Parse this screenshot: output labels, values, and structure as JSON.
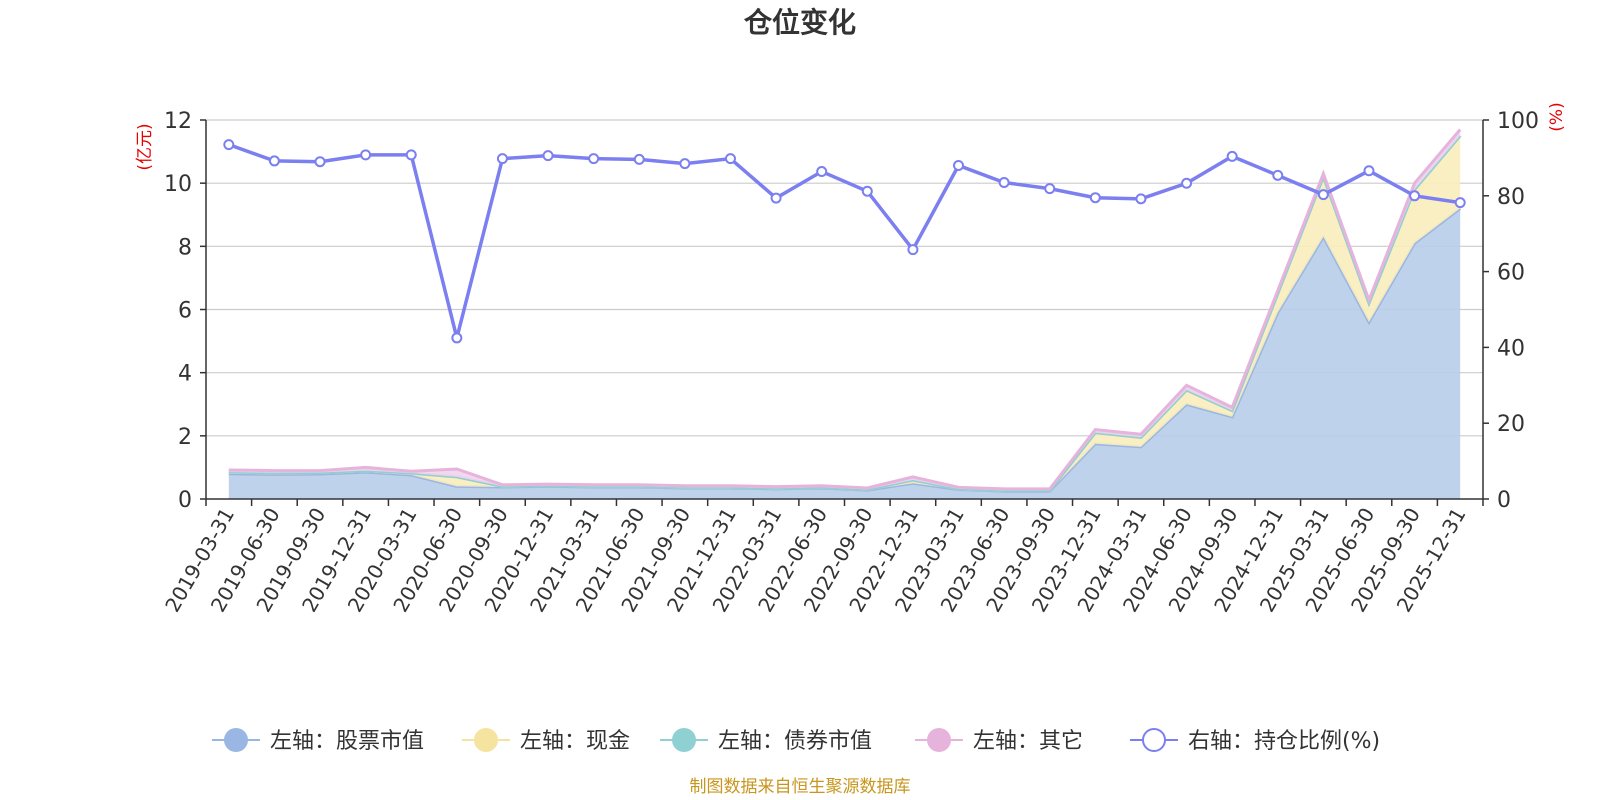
{
  "chart_data": {
    "type": "area",
    "title": "仓位变化",
    "left_axis": {
      "label": "(亿元)",
      "ylim": [
        0,
        12
      ],
      "ticks": [
        0,
        2,
        4,
        6,
        8,
        10,
        12
      ]
    },
    "right_axis": {
      "label": "(%)",
      "ylim": [
        0,
        100
      ],
      "ticks": [
        0,
        20,
        40,
        60,
        80,
        100
      ]
    },
    "categories": [
      "2019-03-31",
      "2019-06-30",
      "2019-09-30",
      "2019-12-31",
      "2020-03-31",
      "2020-06-30",
      "2020-09-30",
      "2020-12-31",
      "2021-03-31",
      "2021-06-30",
      "2021-09-30",
      "2021-12-31",
      "2022-03-31",
      "2022-06-30",
      "2022-09-30",
      "2022-12-31",
      "2023-03-31",
      "2023-06-30",
      "2023-09-30",
      "2023-12-31",
      "2024-03-31",
      "2024-06-30",
      "2024-09-30",
      "2024-12-31",
      "2025-03-31",
      "2025-06-30",
      "2025-09-30",
      "2025-12-31"
    ],
    "series": [
      {
        "name": "左轴：股票市值",
        "axis": "left",
        "type": "area",
        "color": "#9ab6e2",
        "fill": "#b7cdea",
        "values": [
          0.8,
          0.78,
          0.79,
          0.85,
          0.76,
          0.4,
          0.38,
          0.4,
          0.38,
          0.38,
          0.35,
          0.35,
          0.32,
          0.35,
          0.28,
          0.5,
          0.3,
          0.25,
          0.25,
          1.75,
          1.65,
          3.0,
          2.6,
          5.9,
          8.3,
          5.6,
          8.1,
          9.2
        ]
      },
      {
        "name": "左轴：现金",
        "axis": "left",
        "type": "area",
        "color": "#f5e3a0",
        "fill": "#faedbb",
        "values": [
          0.05,
          0.05,
          0.05,
          0.05,
          0.06,
          0.3,
          0.02,
          0.02,
          0.02,
          0.02,
          0.02,
          0.02,
          0.02,
          0.02,
          0.02,
          0.1,
          0.02,
          0.02,
          0.02,
          0.35,
          0.3,
          0.45,
          0.2,
          0.6,
          1.9,
          0.6,
          1.7,
          2.3
        ]
      },
      {
        "name": "左轴：债券市值",
        "axis": "left",
        "type": "area",
        "color": "#8fd0d2",
        "fill": "#bde3e4",
        "values": [
          0,
          0,
          0,
          0,
          0,
          0,
          0,
          0,
          0,
          0,
          0,
          0,
          0,
          0,
          0,
          0,
          0,
          0,
          0,
          0,
          0,
          0,
          0,
          0,
          0,
          0,
          0,
          0
        ]
      },
      {
        "name": "左轴：其它",
        "axis": "left",
        "type": "area",
        "color": "#e6b3dc",
        "fill": "#f1d3ec",
        "values": [
          0.07,
          0.07,
          0.06,
          0.1,
          0.06,
          0.25,
          0.05,
          0.05,
          0.05,
          0.05,
          0.05,
          0.05,
          0.05,
          0.05,
          0.05,
          0.1,
          0.05,
          0.05,
          0.05,
          0.1,
          0.1,
          0.15,
          0.1,
          0.1,
          0.1,
          0.1,
          0.2,
          0.2
        ]
      },
      {
        "name": "右轴：持仓比例(%)",
        "axis": "right",
        "type": "line",
        "color": "#7b7ff0",
        "values": [
          93.5,
          89.2,
          89.0,
          90.8,
          90.8,
          42.5,
          89.8,
          90.6,
          89.8,
          89.6,
          88.5,
          89.8,
          79.4,
          86.4,
          81.2,
          65.8,
          88.0,
          83.5,
          81.9,
          79.5,
          79.2,
          83.3,
          90.4,
          85.4,
          80.3,
          86.6,
          80.0,
          78.2
        ]
      }
    ],
    "legend_position": "bottom",
    "grid": true
  },
  "source_note": "制图数据来自恒生聚源数据库"
}
